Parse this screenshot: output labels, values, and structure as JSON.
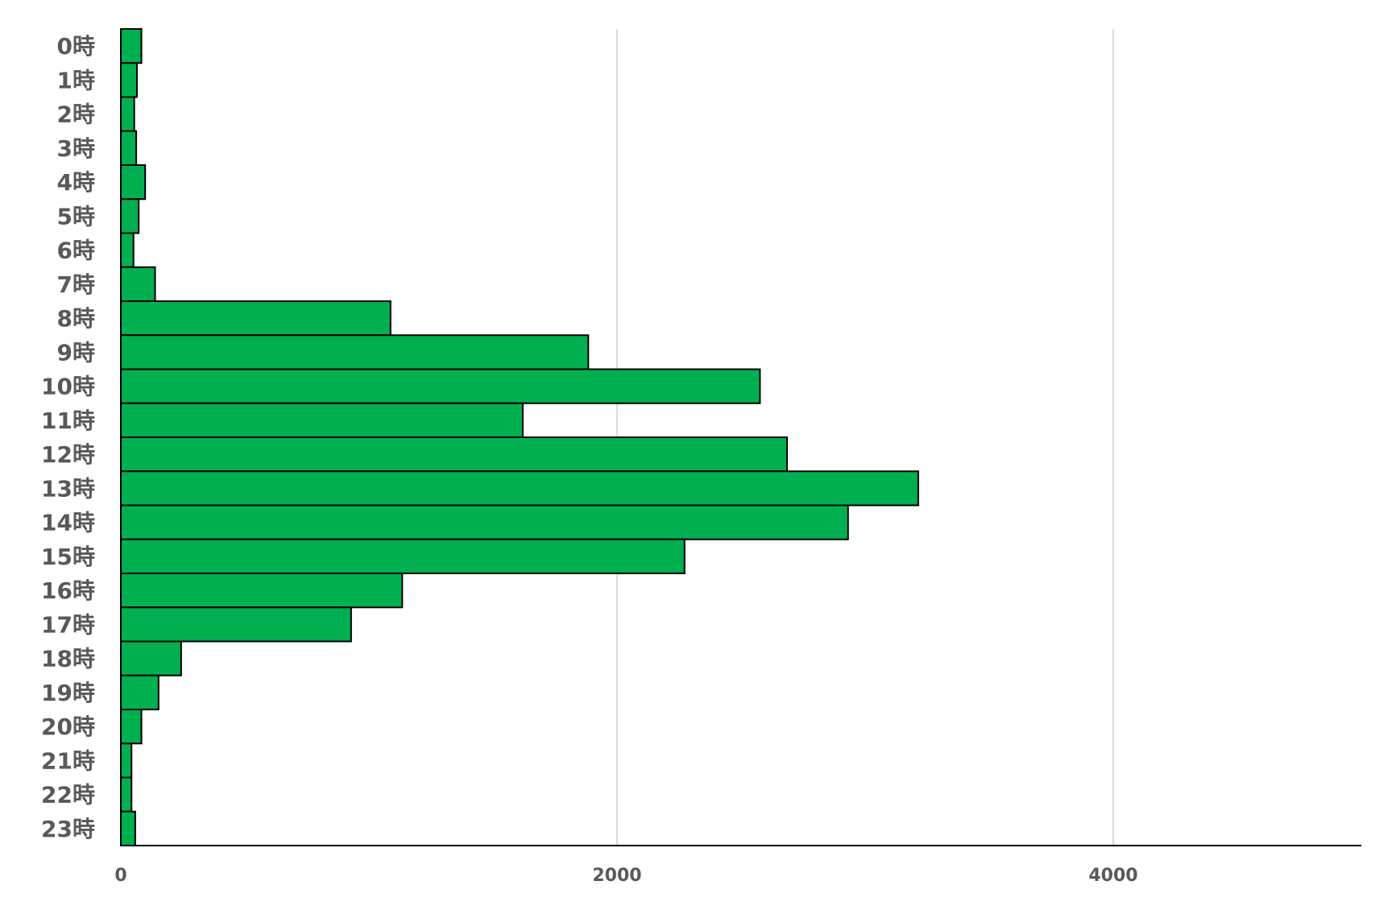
{
  "chart_data": {
    "type": "bar",
    "orientation": "horizontal",
    "categories": [
      "0時",
      "1時",
      "2時",
      "3時",
      "4時",
      "5時",
      "6時",
      "7時",
      "8時",
      "9時",
      "10時",
      "11時",
      "12時",
      "13時",
      "14時",
      "15時",
      "16時",
      "17時",
      "18時",
      "19時",
      "20時",
      "21時",
      "22時",
      "23時"
    ],
    "values": [
      83,
      65,
      54,
      62,
      98,
      72,
      51,
      138,
      1087,
      1884,
      2576,
      1620,
      2685,
      3214,
      2931,
      2272,
      1134,
      928,
      243,
      152,
      83,
      43,
      43,
      58
    ],
    "color": "#00b050",
    "xlim": [
      0,
      5000
    ],
    "xticks": [
      0,
      2000,
      4000
    ],
    "grid": true
  }
}
